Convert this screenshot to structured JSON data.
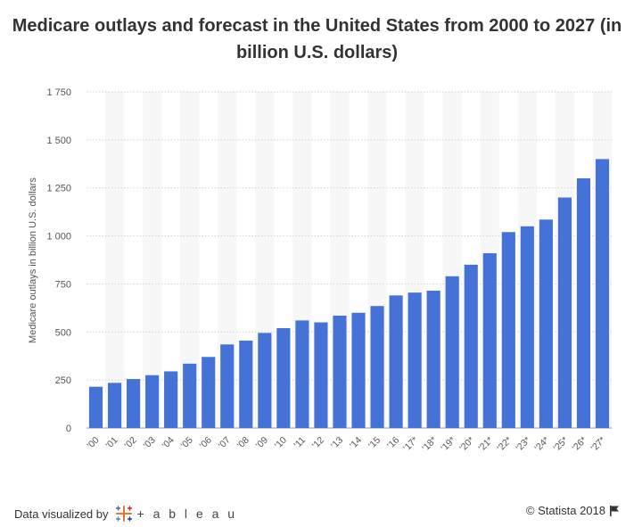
{
  "title": "Medicare outlays and forecast in the United States from 2000 to 2027 (in billion U.S. dollars)",
  "footer": {
    "left_label": "Data visualized by",
    "brand": "+ a b l e a u",
    "brand_icon": "tableau-logo-icon",
    "copyright": "© Statista 2018",
    "flag_icon": "flag-icon"
  },
  "chart_data": {
    "type": "bar",
    "title": "Medicare outlays and forecast in the United States from 2000 to 2027 (in billion U.S. dollars)",
    "ylabel": "Medicare outlays in billion U.S. dollars",
    "xlabel": "",
    "ylim": [
      0,
      1750
    ],
    "yticks": [
      0,
      250,
      500,
      750,
      1000,
      1250,
      1500,
      1750
    ],
    "ytick_labels": [
      "0",
      "250",
      "500",
      "750",
      "1 000",
      "1 250",
      "1 500",
      "1 750"
    ],
    "categories": [
      "'00",
      "'01",
      "'02",
      "'03",
      "'04",
      "'05",
      "'06",
      "'07",
      "'08",
      "'09",
      "'10",
      "'11",
      "'12",
      "'13",
      "'14",
      "'15",
      "'16",
      "'17*",
      "'18*",
      "'19*",
      "'20*",
      "'21*",
      "'22*",
      "'23*",
      "'24*",
      "'25*",
      "'26*",
      "'27*"
    ],
    "values": [
      215,
      235,
      255,
      275,
      295,
      335,
      370,
      435,
      455,
      495,
      520,
      560,
      550,
      585,
      600,
      635,
      690,
      705,
      715,
      790,
      850,
      910,
      1020,
      1050,
      1085,
      1200,
      1300,
      1400
    ],
    "bar_color": "#4472d6",
    "grid": true,
    "alternate_column_shading": true
  }
}
